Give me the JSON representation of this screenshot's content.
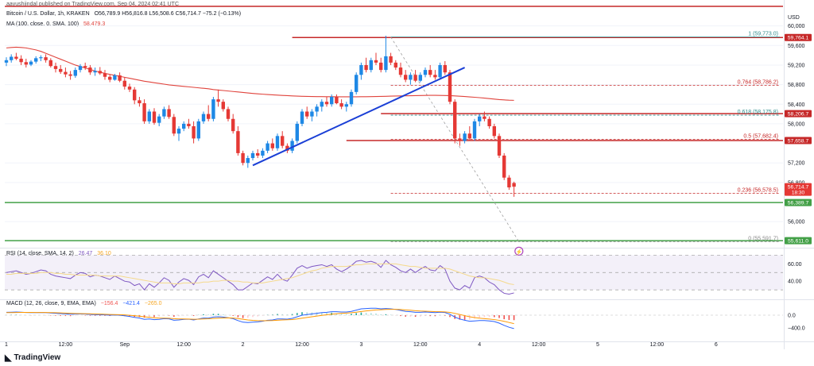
{
  "header": {
    "published": "aayushjindal published on TradingView.com, Sep 04, 2024 02:41 UTC",
    "symbol": "Bitcoin / U.S. Dollar, 1h, KRAKEN",
    "ohlc": "O56,789.9 H56,816.8 L56,508.6 C56,714.7 −75.2 (−0.13%)",
    "ma_label": "MA (100, close, 0, SMA, 100)",
    "ma_value": "58,479.3",
    "rsi_label": "RSI (14, close, SMA, 14, 2)",
    "rsi_value": "26.47",
    "rsi_ma_value": "36.10",
    "macd_label": "MACD (12, 26, close, 9, EMA, EMA)",
    "macd_hist": "−156.4",
    "macd_line": "−421.4",
    "macd_signal": "−265.0"
  },
  "price_axis": {
    "currency": "USD",
    "ticks": [
      "60,000",
      "59,600",
      "59,200",
      "58,800",
      "58,400",
      "58,000",
      "57,200",
      "56,800",
      "56,000"
    ]
  },
  "price_badges": [
    {
      "value": 59764.1,
      "label": "59,764.1",
      "color": "#c62828"
    },
    {
      "value": 58206.7,
      "label": "58,206.7",
      "color": "#c62828"
    },
    {
      "value": 57658.7,
      "label": "57,658.7",
      "color": "#c62828"
    },
    {
      "value": 56714.7,
      "label": "56,714.7",
      "sub": "18:30",
      "color": "#e53935"
    },
    {
      "value": 56389.7,
      "label": "56,389.7",
      "color": "#43a047"
    },
    {
      "value": 55611.0,
      "label": "55,611.0",
      "color": "#43a047"
    }
  ],
  "fib_levels": [
    {
      "label": "1 (59,773.0)",
      "value": 59773.0,
      "color": "#2e8b8b"
    },
    {
      "label": "0.764 (58,786.2)",
      "value": 58786.2,
      "color": "#c62828"
    },
    {
      "label": "0.618 (58,175.8)",
      "value": 58175.8,
      "color": "#2e8b8b"
    },
    {
      "label": "0.5 (57,682.4)",
      "value": 57682.4,
      "color": "#c62828"
    },
    {
      "label": "0.236 (56,578.5)",
      "value": 56578.5,
      "color": "#c62828"
    },
    {
      "label": "0 (55,591.7)",
      "value": 55591.7,
      "color": "#888888"
    }
  ],
  "time_axis": {
    "ticks": [
      "1",
      "12:00",
      "Sep",
      "12:00",
      "2",
      "12:00",
      "3",
      "12:00",
      "4",
      "12:00",
      "5",
      "12:00",
      "6"
    ]
  },
  "rsi_axis": {
    "ticks": [
      "60.00",
      "40.00"
    ]
  },
  "macd_axis": {
    "ticks": [
      "0.0",
      "−400.0"
    ]
  },
  "logo_text": "TradingView",
  "chart_data": {
    "type": "candlestick",
    "interval": "1h",
    "ylim": [
      55500,
      60400
    ],
    "resistance_lines": [
      60400,
      59764.1,
      58206.7,
      57658.7
    ],
    "support_lines": [
      56389.7,
      55611.0
    ],
    "trendline": {
      "from": {
        "i": 50,
        "value": 57150
      },
      "to": {
        "i": 93,
        "value": 59150
      }
    },
    "fib_anchor": {
      "from": {
        "i": 78,
        "value": 59773
      },
      "to": {
        "i": 104,
        "value": 55591.7
      }
    },
    "candles": [
      [
        59250,
        59360,
        59180,
        59300
      ],
      [
        59300,
        59420,
        59250,
        59370
      ],
      [
        59370,
        59450,
        59300,
        59330
      ],
      [
        59330,
        59400,
        59200,
        59260
      ],
      [
        59260,
        59330,
        59150,
        59210
      ],
      [
        59210,
        59300,
        59180,
        59270
      ],
      [
        59270,
        59380,
        59230,
        59340
      ],
      [
        59340,
        59400,
        59280,
        59360
      ],
      [
        59360,
        59420,
        59250,
        59300
      ],
      [
        59300,
        59340,
        59150,
        59180
      ],
      [
        59180,
        59250,
        59050,
        59120
      ],
      [
        59120,
        59200,
        59020,
        59060
      ],
      [
        59060,
        59150,
        58950,
        59010
      ],
      [
        59010,
        59080,
        58900,
        58980
      ],
      [
        58980,
        59150,
        58940,
        59100
      ],
      [
        59100,
        59220,
        59050,
        59180
      ],
      [
        59180,
        59250,
        59100,
        59150
      ],
      [
        59150,
        59200,
        59000,
        59050
      ],
      [
        59050,
        59150,
        58980,
        59080
      ],
      [
        59080,
        59160,
        59000,
        59030
      ],
      [
        59030,
        59100,
        58900,
        58960
      ],
      [
        58960,
        59000,
        58850,
        58900
      ],
      [
        58900,
        59020,
        58880,
        58990
      ],
      [
        58990,
        59050,
        58850,
        58880
      ],
      [
        58880,
        58950,
        58700,
        58760
      ],
      [
        58760,
        58820,
        58650,
        58700
      ],
      [
        58700,
        58750,
        58400,
        58480
      ],
      [
        58480,
        58550,
        58350,
        58420
      ],
      [
        58420,
        58500,
        58000,
        58050
      ],
      [
        58050,
        58300,
        58000,
        58250
      ],
      [
        58250,
        58320,
        57980,
        58020
      ],
      [
        58020,
        58200,
        57950,
        58150
      ],
      [
        58150,
        58350,
        58100,
        58300
      ],
      [
        58300,
        58380,
        58100,
        58140
      ],
      [
        58140,
        58200,
        57750,
        57800
      ],
      [
        57800,
        57950,
        57650,
        57900
      ],
      [
        57900,
        58050,
        57850,
        58000
      ],
      [
        58000,
        58100,
        57900,
        57950
      ],
      [
        57950,
        58050,
        57600,
        57700
      ],
      [
        57700,
        58100,
        57650,
        58050
      ],
      [
        58050,
        58250,
        58000,
        58200
      ],
      [
        58200,
        58380,
        58050,
        58100
      ],
      [
        58100,
        58550,
        58050,
        58500
      ],
      [
        58500,
        58700,
        58350,
        58450
      ],
      [
        58450,
        58500,
        58250,
        58300
      ],
      [
        58300,
        58350,
        58050,
        58100
      ],
      [
        58100,
        58200,
        57800,
        57850
      ],
      [
        57850,
        57950,
        57350,
        57400
      ],
      [
        57400,
        57450,
        57150,
        57200
      ],
      [
        57200,
        57350,
        57100,
        57300
      ],
      [
        57300,
        57450,
        57250,
        57400
      ],
      [
        57400,
        57480,
        57300,
        57350
      ],
      [
        57350,
        57500,
        57300,
        57450
      ],
      [
        57450,
        57650,
        57400,
        57600
      ],
      [
        57600,
        57700,
        57450,
        57500
      ],
      [
        57500,
        57800,
        57450,
        57750
      ],
      [
        57750,
        57850,
        57500,
        57550
      ],
      [
        57550,
        57600,
        57400,
        57450
      ],
      [
        57450,
        57700,
        57400,
        57650
      ],
      [
        57650,
        58050,
        57600,
        58000
      ],
      [
        58000,
        58300,
        57950,
        58250
      ],
      [
        58250,
        58350,
        58100,
        58150
      ],
      [
        58150,
        58300,
        58050,
        58250
      ],
      [
        58250,
        58400,
        58150,
        58350
      ],
      [
        58350,
        58500,
        58250,
        58450
      ],
      [
        58450,
        58550,
        58350,
        58400
      ],
      [
        58400,
        58600,
        58350,
        58550
      ],
      [
        58550,
        58600,
        58400,
        58420
      ],
      [
        58420,
        58500,
        58300,
        58350
      ],
      [
        58350,
        58450,
        58250,
        58400
      ],
      [
        58400,
        58700,
        58350,
        58650
      ],
      [
        58650,
        59050,
        58600,
        59000
      ],
      [
        59000,
        59250,
        58900,
        59200
      ],
      [
        59200,
        59350,
        59050,
        59100
      ],
      [
        59100,
        59350,
        59050,
        59300
      ],
      [
        59300,
        59450,
        59200,
        59250
      ],
      [
        59250,
        59350,
        59050,
        59100
      ],
      [
        59100,
        59800,
        59050,
        59380
      ],
      [
        59380,
        59450,
        59200,
        59250
      ],
      [
        59250,
        59300,
        59100,
        59150
      ],
      [
        59150,
        59250,
        58950,
        59000
      ],
      [
        59000,
        59100,
        58850,
        58900
      ],
      [
        58900,
        59050,
        58800,
        59000
      ],
      [
        59000,
        59100,
        58850,
        58880
      ],
      [
        58880,
        59050,
        58850,
        59000
      ],
      [
        59000,
        59150,
        58950,
        59100
      ],
      [
        59100,
        59200,
        58950,
        59000
      ],
      [
        59000,
        59100,
        58900,
        58950
      ],
      [
        58950,
        59250,
        58900,
        59200
      ],
      [
        59200,
        59280,
        59000,
        59050
      ],
      [
        59050,
        59100,
        58400,
        58450
      ],
      [
        58450,
        58500,
        57600,
        57700
      ],
      [
        57700,
        57800,
        57550,
        57650
      ],
      [
        57650,
        57850,
        57600,
        57800
      ],
      [
        57800,
        57950,
        57650,
        57700
      ],
      [
        57700,
        58100,
        57650,
        58050
      ],
      [
        58050,
        58200,
        57950,
        58150
      ],
      [
        58150,
        58250,
        58050,
        58100
      ],
      [
        58100,
        58150,
        57900,
        57950
      ],
      [
        57950,
        58000,
        57700,
        57750
      ],
      [
        57750,
        57800,
        57300,
        57350
      ],
      [
        57350,
        57400,
        56850,
        56900
      ],
      [
        56900,
        56950,
        56650,
        56700
      ],
      [
        56789.9,
        56816.8,
        56508.6,
        56714.7
      ]
    ],
    "ma100": [
      59550,
      59560,
      59565,
      59560,
      59550,
      59530,
      59510,
      59480,
      59440,
      59400,
      59360,
      59320,
      59280,
      59240,
      59200,
      59170,
      59140,
      59110,
      59080,
      59055,
      59030,
      59010,
      58990,
      58970,
      58950,
      58930,
      58910,
      58890,
      58870,
      58855,
      58840,
      58825,
      58810,
      58795,
      58785,
      58775,
      58765,
      58755,
      58745,
      58735,
      58725,
      58715,
      58700,
      58690,
      58680,
      58670,
      58660,
      58650,
      58640,
      58630,
      58620,
      58612,
      58605,
      58598,
      58592,
      58586,
      58580,
      58575,
      58570,
      58565,
      58562,
      58560,
      58558,
      58556,
      58555,
      58554,
      58553,
      58552,
      58552,
      58551,
      58551,
      58552,
      58553,
      58554,
      58556,
      58558,
      58560,
      58562,
      58565,
      58568,
      58570,
      58572,
      58574,
      58576,
      58578,
      58580,
      58582,
      58582,
      58580,
      58578,
      58575,
      58570,
      58564,
      58558,
      58550,
      58542,
      58534,
      58525,
      58515,
      58505,
      58495,
      58488,
      58482,
      58479.3
    ],
    "rsi": [
      50,
      51,
      52,
      50,
      48,
      49,
      51,
      53,
      52,
      48,
      46,
      45,
      44,
      43,
      47,
      50,
      49,
      45,
      47,
      46,
      44,
      42,
      46,
      43,
      40,
      39,
      35,
      37,
      30,
      37,
      33,
      38,
      44,
      41,
      33,
      39,
      43,
      41,
      36,
      45,
      48,
      44,
      52,
      48,
      44,
      40,
      36,
      30,
      30,
      34,
      38,
      37,
      41,
      45,
      42,
      48,
      42,
      40,
      47,
      55,
      58,
      55,
      57,
      58,
      59,
      57,
      59,
      54,
      51,
      54,
      58,
      63,
      64,
      62,
      63,
      61,
      56,
      64,
      59,
      56,
      52,
      50,
      54,
      50,
      54,
      57,
      53,
      52,
      58,
      54,
      40,
      32,
      30,
      35,
      32,
      44,
      46,
      44,
      39,
      36,
      30,
      26,
      25,
      26.47
    ],
    "rsi_ma": [
      48,
      48,
      49,
      49,
      49,
      49,
      49,
      50,
      50,
      50,
      49,
      49,
      48,
      48,
      47,
      47,
      47,
      47,
      47,
      46,
      46,
      46,
      46,
      46,
      45,
      44,
      43,
      42,
      41,
      40,
      39,
      38,
      38,
      38,
      37,
      37,
      38,
      38,
      38,
      38,
      39,
      39,
      40,
      40,
      41,
      41,
      40,
      40,
      39,
      39,
      38,
      38,
      38,
      39,
      40,
      41,
      42,
      43,
      44,
      46,
      48,
      50,
      52,
      53,
      55,
      56,
      57,
      57,
      57,
      57,
      58,
      59,
      59,
      60,
      60,
      60,
      60,
      60,
      60,
      60,
      59,
      58,
      57,
      57,
      56,
      55,
      55,
      55,
      55,
      55,
      54,
      52,
      50,
      48,
      46,
      45,
      44,
      44,
      43,
      42,
      41,
      39,
      37,
      36.1
    ],
    "macd": [
      90,
      95,
      100,
      95,
      85,
      80,
      82,
      85,
      80,
      70,
      60,
      50,
      40,
      30,
      35,
      40,
      35,
      25,
      20,
      15,
      10,
      0,
      5,
      0,
      -20,
      -40,
      -70,
      -90,
      -130,
      -120,
      -140,
      -130,
      -110,
      -115,
      -160,
      -150,
      -130,
      -125,
      -150,
      -120,
      -90,
      -95,
      -60,
      -50,
      -60,
      -80,
      -110,
      -170,
      -220,
      -230,
      -220,
      -210,
      -190,
      -160,
      -150,
      -120,
      -120,
      -125,
      -100,
      -50,
      0,
      20,
      40,
      60,
      80,
      90,
      110,
      110,
      100,
      100,
      120,
      160,
      200,
      210,
      220,
      220,
      200,
      210,
      200,
      180,
      150,
      120,
      110,
      90,
      90,
      100,
      90,
      80,
      95,
      85,
      30,
      -60,
      -120,
      -160,
      -190,
      -180,
      -170,
      -170,
      -180,
      -200,
      -250,
      -320,
      -380,
      -421.4
    ],
    "macd_signal": [
      80,
      82,
      85,
      87,
      87,
      86,
      85,
      85,
      84,
      81,
      77,
      72,
      66,
      59,
      54,
      51,
      48,
      43,
      39,
      34,
      29,
      23,
      19,
      15,
      8,
      -2,
      -16,
      -31,
      -51,
      -65,
      -80,
      -90,
      -94,
      -98,
      -110,
      -118,
      -120,
      -121,
      -127,
      -126,
      -119,
      -114,
      -103,
      -93,
      -86,
      -85,
      -90,
      -106,
      -129,
      -149,
      -163,
      -172,
      -176,
      -173,
      -168,
      -158,
      -150,
      -145,
      -136,
      -119,
      -95,
      -72,
      -50,
      -28,
      -6,
      13,
      32,
      48,
      58,
      67,
      77,
      93,
      115,
      134,
      151,
      165,
      172,
      180,
      184,
      183,
      177,
      166,
      155,
      142,
      132,
      126,
      119,
      111,
      108,
      103,
      88,
      58,
      22,
      -14,
      -49,
      -75,
      -94,
      -109,
      -123,
      -139,
      -161,
      -193,
      -230,
      -265.0
    ]
  }
}
